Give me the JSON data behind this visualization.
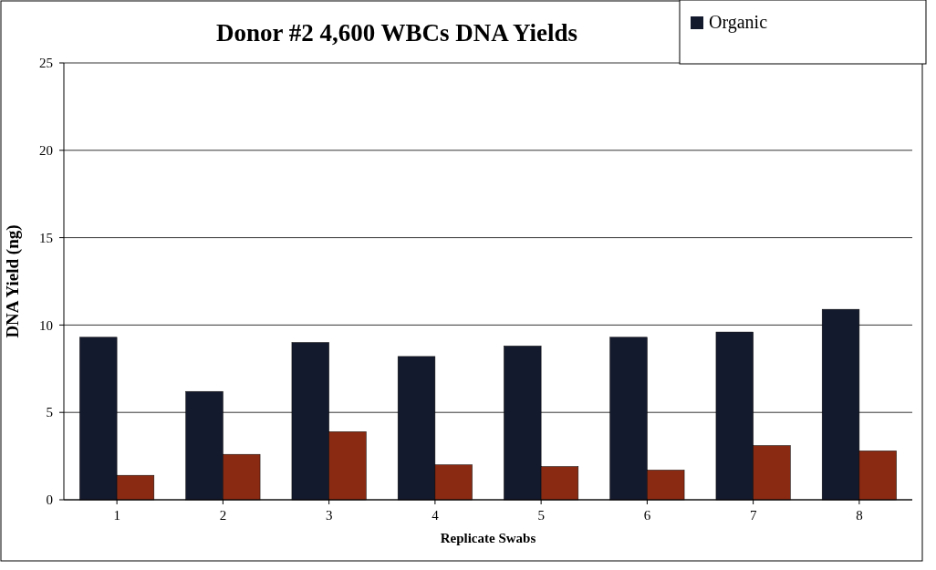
{
  "chart_data": {
    "type": "bar",
    "title": "Donor #2 4,600 WBCs DNA Yields",
    "xlabel": "Replicate Swabs",
    "ylabel": "DNA Yield (ng)",
    "categories": [
      "1",
      "2",
      "3",
      "4",
      "5",
      "6",
      "7",
      "8"
    ],
    "series": [
      {
        "name": "Organic",
        "color": "#141a2e",
        "values": [
          9.3,
          6.2,
          9.0,
          8.2,
          8.8,
          9.3,
          9.6,
          10.9
        ]
      },
      {
        "color": "#8b2a12",
        "values": [
          1.4,
          2.6,
          3.9,
          2.0,
          1.9,
          1.7,
          3.1,
          2.8
        ]
      }
    ],
    "ylim": [
      0,
      25
    ],
    "yticks": [
      0,
      5,
      10,
      15,
      20,
      25
    ],
    "grid": "y",
    "legend": "top right"
  }
}
